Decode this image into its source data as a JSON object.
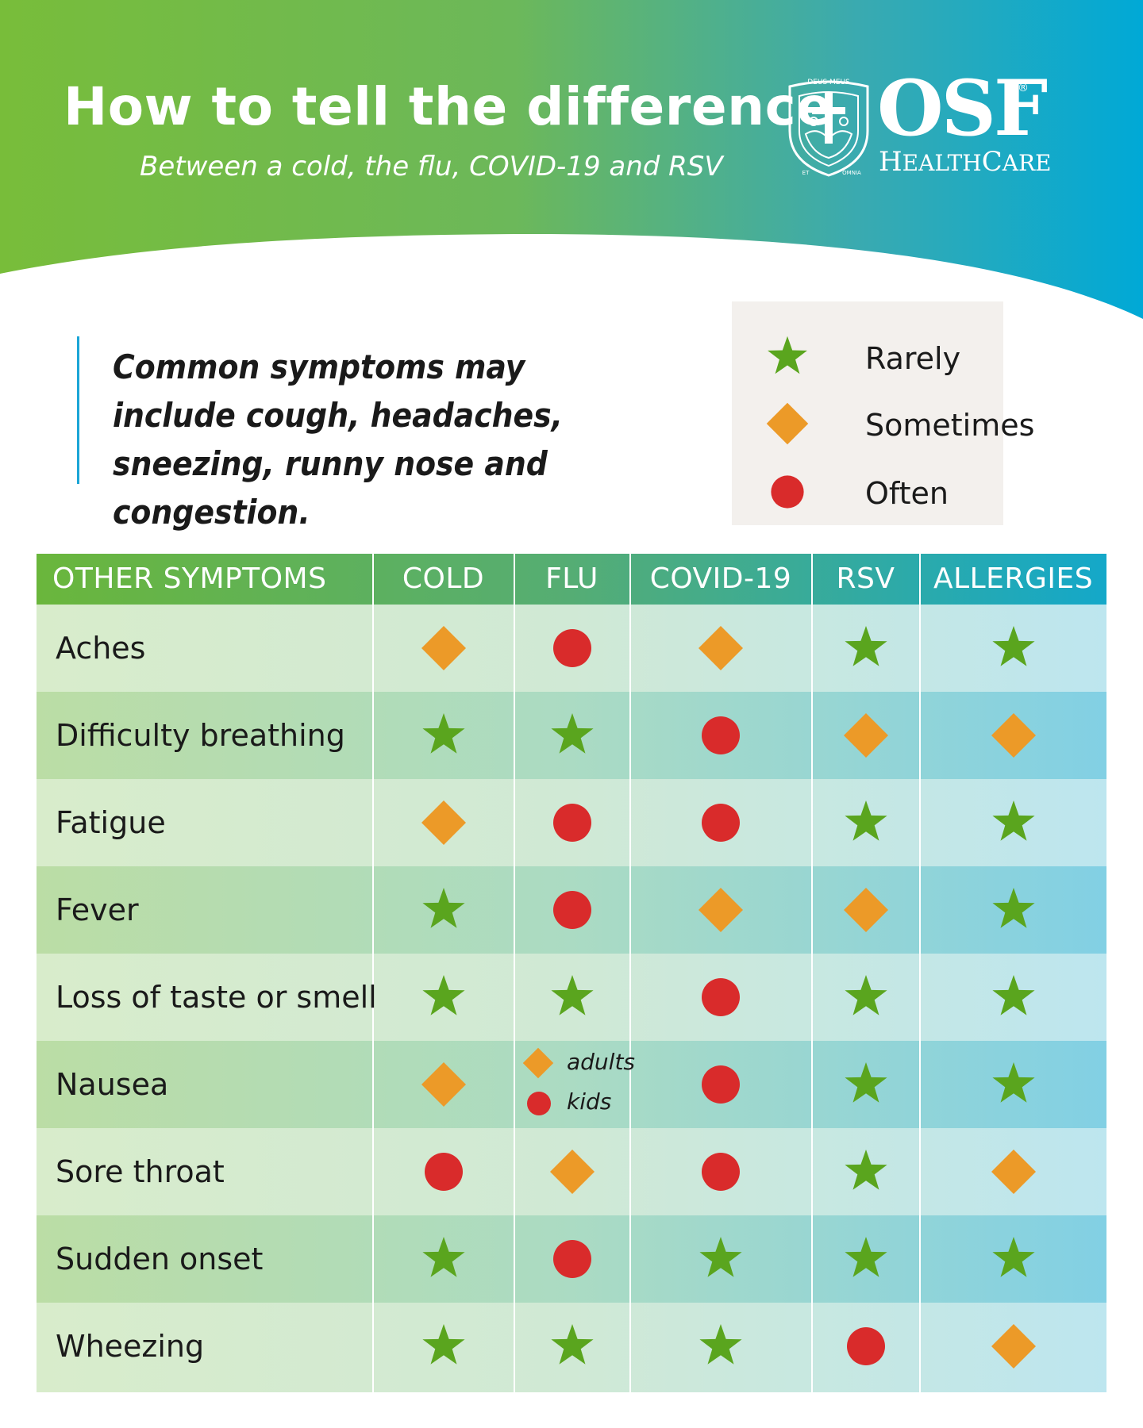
{
  "header": {
    "title": "How to tell the difference",
    "subtitle": "Between a cold, the flu, COVID-19 and RSV"
  },
  "logo": {
    "seal_top": "DEUS MEUS",
    "seal_bottom_left": "ET",
    "seal_bottom_right": "OMNIA",
    "name": "OSF",
    "registered": "®",
    "sub_first_h": "H",
    "sub_ealth": "EALTH",
    "sub_c": "C",
    "sub_are": "ARE"
  },
  "intro": {
    "text": "Common symptoms may include cough, headaches, sneezing, runny nose and congestion."
  },
  "legend": {
    "items": [
      {
        "icon": "star-icon",
        "label": "Rarely"
      },
      {
        "icon": "diamond-icon",
        "label": "Sometimes"
      },
      {
        "icon": "circle-icon",
        "label": "Often"
      }
    ]
  },
  "colors": {
    "star": "#5aa51e",
    "diamond": "#ec9a28",
    "circle": "#d92b2b",
    "header_green": "#78bd3a",
    "header_blue": "#00a9d6"
  },
  "table": {
    "headers": [
      "OTHER SYMPTOMS",
      "COLD",
      "FLU",
      "COVID-19",
      "RSV",
      "ALLERGIES"
    ],
    "rows": [
      {
        "label": "Aches",
        "values": [
          "sometimes",
          "often",
          "sometimes",
          "rarely",
          "rarely"
        ]
      },
      {
        "label": "Difficulty breathing",
        "values": [
          "rarely",
          "rarely",
          "often",
          "sometimes",
          "sometimes"
        ]
      },
      {
        "label": "Fatigue",
        "values": [
          "sometimes",
          "often",
          "often",
          "rarely",
          "rarely"
        ]
      },
      {
        "label": "Fever",
        "values": [
          "rarely",
          "often",
          "sometimes",
          "sometimes",
          "rarely"
        ]
      },
      {
        "label": "Loss of taste or smell",
        "values": [
          "rarely",
          "rarely",
          "often",
          "rarely",
          "rarely"
        ]
      },
      {
        "label": "Nausea",
        "values": [
          "sometimes",
          "split",
          "often",
          "rarely",
          "rarely"
        ],
        "split": [
          {
            "value": "sometimes",
            "label": "adults"
          },
          {
            "value": "often",
            "label": "kids"
          }
        ]
      },
      {
        "label": "Sore throat",
        "values": [
          "often",
          "sometimes",
          "often",
          "rarely",
          "sometimes"
        ]
      },
      {
        "label": "Sudden onset",
        "values": [
          "rarely",
          "often",
          "rarely",
          "rarely",
          "rarely"
        ]
      },
      {
        "label": "Wheezing",
        "values": [
          "rarely",
          "rarely",
          "rarely",
          "often",
          "sometimes"
        ]
      }
    ]
  }
}
